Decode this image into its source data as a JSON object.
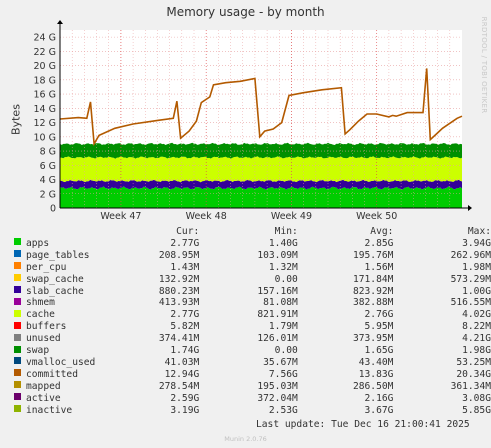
{
  "title": "Memory usage - by month",
  "side_credit": "RRDTOOL / TOBI OETIKER",
  "footer": "Munin 2.0.76",
  "last_update": "Last update: Tue Dec 16 21:00:41 2025",
  "legend_headers": {
    "cur": "Cur:",
    "min": "Min:",
    "avg": "Avg:",
    "max": "Max:"
  },
  "legend": [
    {
      "name": "apps",
      "color": "#00cc00",
      "cur": "2.77G",
      "min": "1.40G",
      "avg": "2.85G",
      "max": "3.94G"
    },
    {
      "name": "page_tables",
      "color": "#0066b3",
      "cur": "208.95M",
      "min": "103.09M",
      "avg": "195.76M",
      "max": "262.96M"
    },
    {
      "name": "per_cpu",
      "color": "#ff8000",
      "cur": "1.43M",
      "min": "1.32M",
      "avg": "1.56M",
      "max": "1.98M"
    },
    {
      "name": "swap_cache",
      "color": "#ffcc00",
      "cur": "132.92M",
      "min": "0.00",
      "avg": "171.84M",
      "max": "573.29M"
    },
    {
      "name": "slab_cache",
      "color": "#330099",
      "cur": "880.23M",
      "min": "157.16M",
      "avg": "823.92M",
      "max": "1.00G"
    },
    {
      "name": "shmem",
      "color": "#990099",
      "cur": "413.93M",
      "min": "81.08M",
      "avg": "382.88M",
      "max": "516.55M"
    },
    {
      "name": "cache",
      "color": "#ccff00",
      "cur": "2.77G",
      "min": "821.91M",
      "avg": "2.76G",
      "max": "4.02G"
    },
    {
      "name": "buffers",
      "color": "#ff0000",
      "cur": "5.82M",
      "min": "1.79M",
      "avg": "5.95M",
      "max": "8.22M"
    },
    {
      "name": "unused",
      "color": "#808080",
      "cur": "374.41M",
      "min": "126.01M",
      "avg": "373.95M",
      "max": "4.21G"
    },
    {
      "name": "swap",
      "color": "#008f00",
      "cur": "1.74G",
      "min": "0.00",
      "avg": "1.65G",
      "max": "1.98G"
    },
    {
      "name": "vmalloc_used",
      "color": "#00487d",
      "cur": "41.03M",
      "min": "35.67M",
      "avg": "43.40M",
      "max": "53.25M"
    },
    {
      "name": "committed",
      "color": "#b35a00",
      "cur": "12.94G",
      "min": "7.56G",
      "avg": "13.83G",
      "max": "20.34G"
    },
    {
      "name": "mapped",
      "color": "#b38f00",
      "cur": "278.54M",
      "min": "195.03M",
      "avg": "286.50M",
      "max": "361.34M"
    },
    {
      "name": "active",
      "color": "#6b006b",
      "cur": "2.59G",
      "min": "372.04M",
      "avg": "2.16G",
      "max": "3.08G"
    },
    {
      "name": "inactive",
      "color": "#8fb300",
      "cur": "3.19G",
      "min": "2.53G",
      "avg": "3.67G",
      "max": "5.85G"
    }
  ],
  "chart_data": {
    "type": "area",
    "title": "Memory usage - by month",
    "ylabel": "Bytes",
    "xlabel": "",
    "ylim": [
      0,
      25
    ],
    "y_unit": "G",
    "y_ticks": [
      0,
      2,
      4,
      6,
      8,
      10,
      12,
      14,
      16,
      18,
      20,
      22,
      24
    ],
    "y_tick_labels": [
      "0",
      "2 G",
      "4 G",
      "6 G",
      "8 G",
      "10 G",
      "12 G",
      "14 G",
      "16 G",
      "18 G",
      "20 G",
      "22 G",
      "24 G"
    ],
    "x_labels": [
      {
        "label": "Week 47",
        "day": 5
      },
      {
        "label": "Week 48",
        "day": 12
      },
      {
        "label": "Week 49",
        "day": 19
      },
      {
        "label": "Week 50",
        "day": 26
      }
    ],
    "x_range_days": [
      0,
      33
    ],
    "grid": true,
    "stacked_series_approx_top": [
      {
        "name": "apps",
        "top": 2.8
      },
      {
        "name": "slab_cache",
        "top": 3.8
      },
      {
        "name": "cache",
        "top": 7.1
      },
      {
        "name": "swap",
        "top": 9.0
      }
    ],
    "committed_line": [
      [
        0.0,
        12.5
      ],
      [
        1.5,
        12.7
      ],
      [
        2.2,
        12.6
      ],
      [
        2.5,
        14.9
      ],
      [
        2.8,
        9.0
      ],
      [
        3.2,
        10.2
      ],
      [
        4.5,
        11.2
      ],
      [
        6.0,
        11.8
      ],
      [
        8.0,
        12.3
      ],
      [
        9.3,
        12.6
      ],
      [
        9.6,
        15.0
      ],
      [
        9.9,
        9.8
      ],
      [
        10.6,
        10.8
      ],
      [
        11.2,
        12.2
      ],
      [
        11.6,
        14.8
      ],
      [
        12.3,
        15.6
      ],
      [
        12.6,
        17.3
      ],
      [
        13.6,
        17.6
      ],
      [
        14.8,
        17.8
      ],
      [
        16.0,
        18.2
      ],
      [
        16.4,
        10.0
      ],
      [
        16.8,
        10.8
      ],
      [
        17.5,
        11.1
      ],
      [
        18.2,
        12.0
      ],
      [
        18.8,
        15.8
      ],
      [
        20.0,
        16.2
      ],
      [
        21.5,
        16.6
      ],
      [
        23.1,
        16.9
      ],
      [
        23.4,
        10.4
      ],
      [
        23.8,
        11.0
      ],
      [
        24.5,
        12.2
      ],
      [
        25.2,
        13.2
      ],
      [
        26.0,
        13.2
      ],
      [
        27.0,
        12.8
      ],
      [
        27.3,
        13.0
      ],
      [
        27.6,
        12.9
      ],
      [
        28.5,
        13.4
      ],
      [
        29.8,
        13.4
      ],
      [
        30.1,
        19.6
      ],
      [
        30.4,
        9.6
      ],
      [
        30.9,
        10.4
      ],
      [
        31.4,
        11.2
      ],
      [
        32.0,
        11.9
      ],
      [
        32.6,
        12.6
      ],
      [
        33.0,
        12.9
      ]
    ]
  }
}
